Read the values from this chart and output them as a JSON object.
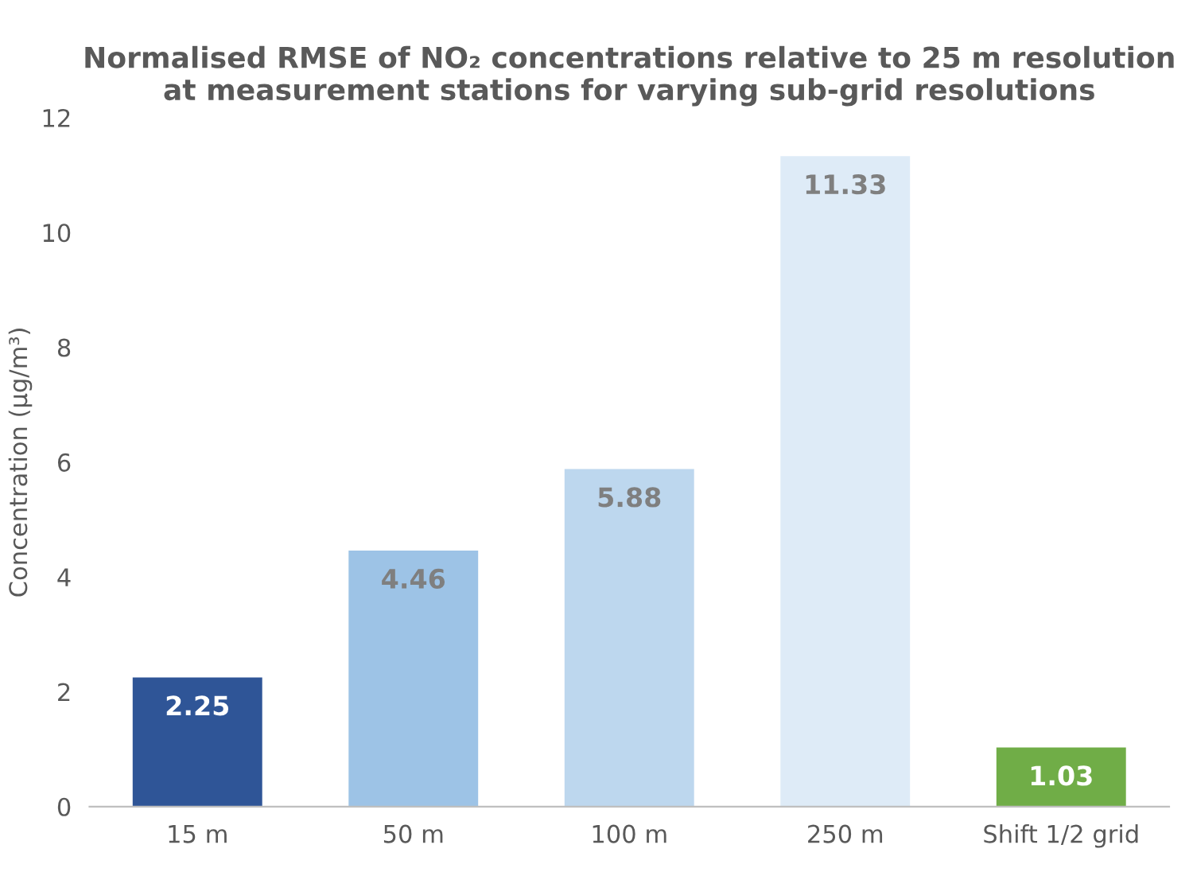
{
  "chart_data": {
    "type": "bar",
    "title": "Normalised RMSE of NO₂ concentrations relative to 25 m resolution at measurement stations for varying sub-grid resolutions",
    "ylabel": "Concentration (µg/m³)",
    "categories": [
      "15 m",
      "50 m",
      "100 m",
      "250 m",
      "Shift 1/2 grid"
    ],
    "values": [
      2.25,
      4.46,
      5.88,
      11.33,
      1.03
    ],
    "colors": [
      "#2f5597",
      "#9dc3e6",
      "#bdd7ee",
      "#deebf7",
      "#70ad47"
    ],
    "ylim": [
      0,
      12
    ],
    "yticks": [
      0,
      2,
      4,
      6,
      8,
      10,
      12
    ],
    "grid": false,
    "data_labels": true
  }
}
